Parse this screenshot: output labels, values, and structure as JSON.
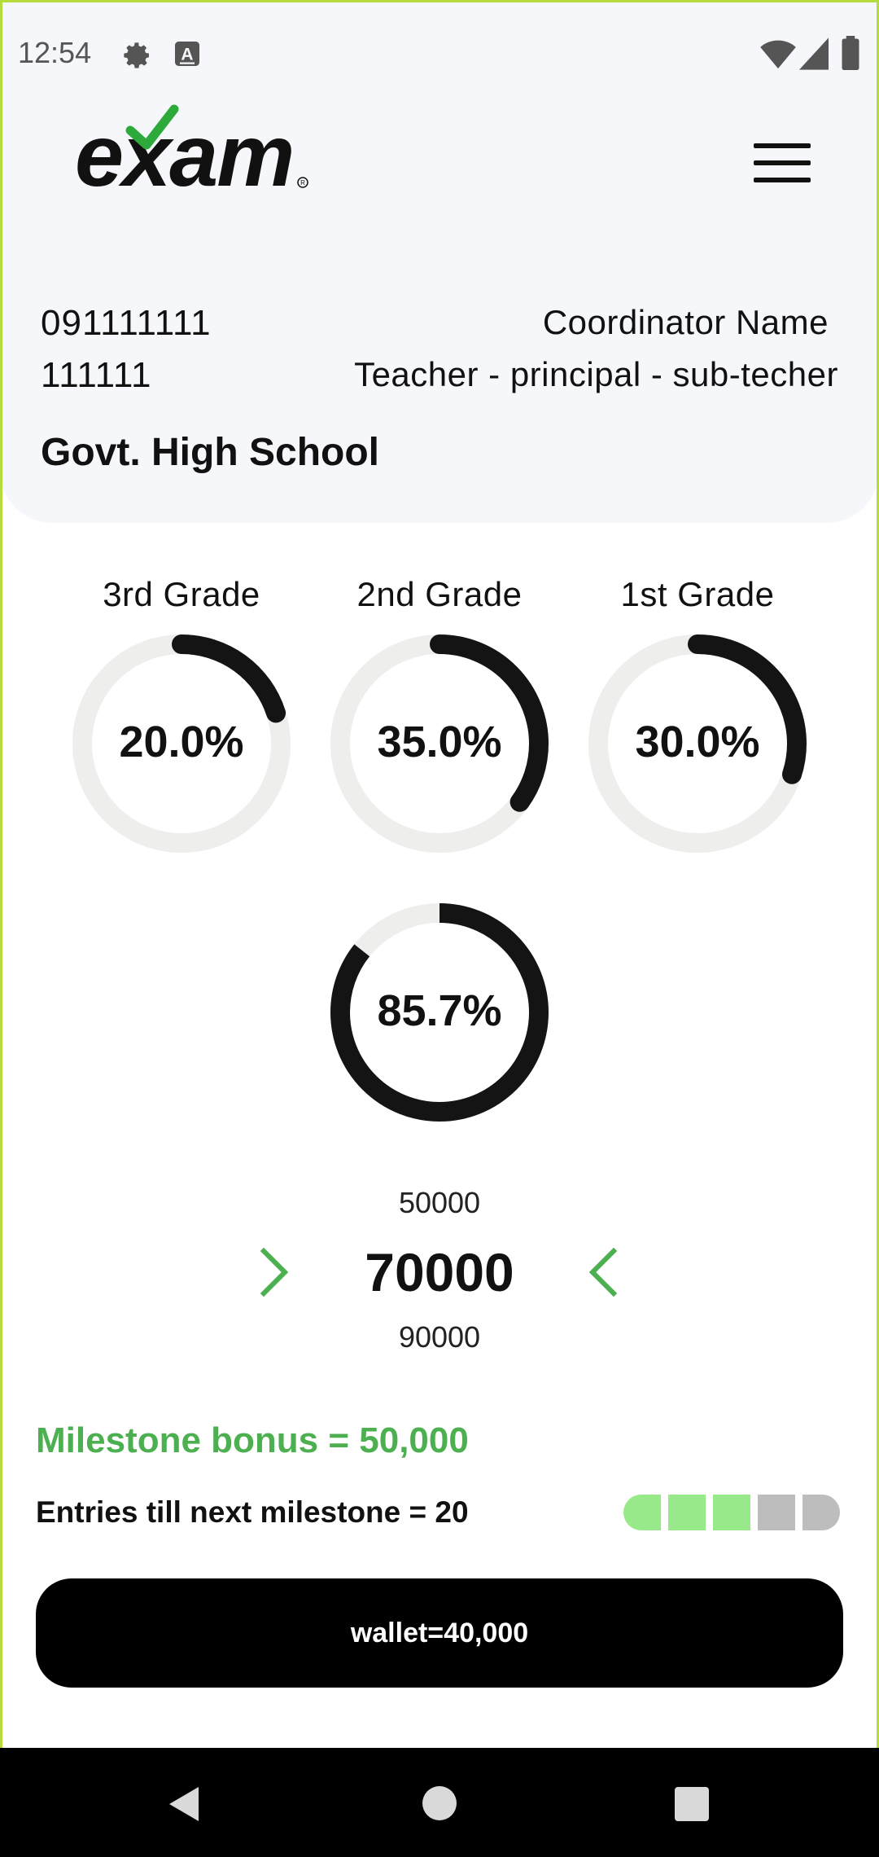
{
  "status_bar": {
    "time": "12:54",
    "icons_left": [
      "gear-icon",
      "a-icon"
    ],
    "icons_right": [
      "wifi-icon",
      "signal-icon",
      "battery-icon"
    ]
  },
  "header": {
    "logo_text": "exam",
    "logo_check_color": "#2eaa3c",
    "menu_icon": "hamburger-icon"
  },
  "profile": {
    "phone_line1": "091111111",
    "phone_line2": "111111",
    "coordinator_name": "Coordinator Name",
    "roles": "Teacher - principal - sub-techer",
    "school": "Govt. High School"
  },
  "grades": [
    {
      "label": "3rd Grade",
      "percent_text": "20.0%",
      "value": 0.2
    },
    {
      "label": "2nd Grade",
      "percent_text": "35.0%",
      "value": 0.35
    },
    {
      "label": "1st Grade",
      "percent_text": "30.0%",
      "value": 0.3
    }
  ],
  "overall": {
    "percent_text": "85.7%",
    "value": 0.857
  },
  "picker": {
    "prev": "50000",
    "current": "70000",
    "next": "90000",
    "left_icon": "chevron-right-icon",
    "right_icon": "chevron-left-icon"
  },
  "milestone": {
    "bonus_text": "Milestone bonus = 50,000",
    "entries_text": "Entries till next milestone = 20",
    "segments_total": 5,
    "segments_filled": 3
  },
  "wallet": {
    "label": "wallet=40,000"
  },
  "colors": {
    "accent_green": "#4caf50",
    "segment_filled": "#98e98a",
    "segment_empty": "#bdbdbd",
    "ring_track": "#eeeeec",
    "ring_fill": "#141414"
  },
  "nav_bar": {
    "icons": [
      "back-icon",
      "home-icon",
      "recents-icon"
    ]
  }
}
